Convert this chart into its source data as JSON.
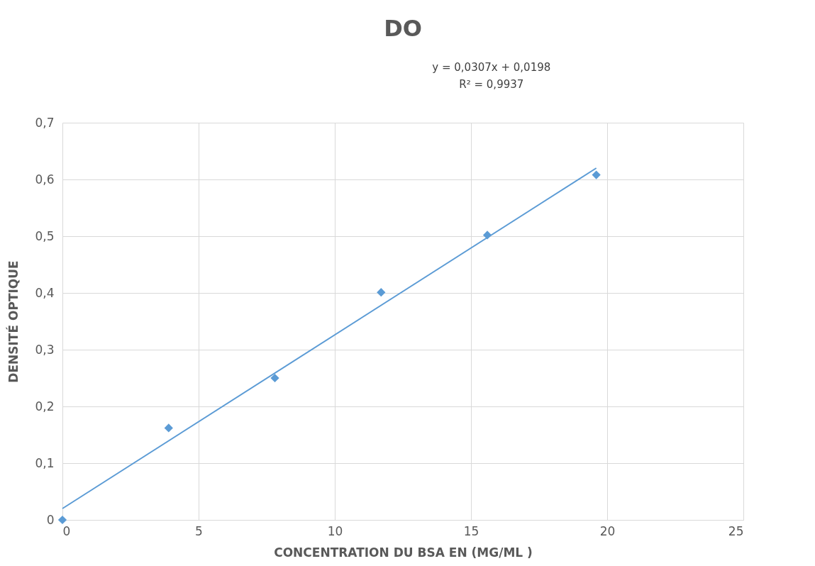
{
  "chart_data": {
    "type": "scatter",
    "title": "DO",
    "xlabel": "CONCENTRATION DU BSA EN (MG/ML  )",
    "ylabel": "DENSITÉ OPTIQUE",
    "annotations": [
      "y = 0,0307x + 0,0198",
      "R² = 0,9937"
    ],
    "series": [
      {
        "color": "#5b9bd5",
        "marker": "diamond",
        "x": [
          0,
          3.9,
          7.8,
          11.7,
          15.6,
          19.6
        ],
        "values": [
          0,
          0.162,
          0.25,
          0.401,
          0.502,
          0.608
        ]
      },
      {
        "type": "line",
        "color": "#5b9bd5",
        "line_style": "solid",
        "x": [
          0,
          19.6
        ],
        "values": [
          0.02,
          0.62
        ]
      }
    ],
    "xlim": [
      0,
      25
    ],
    "xticks": [
      0,
      5,
      10,
      15,
      20,
      25
    ],
    "ylim": [
      0,
      0.7
    ],
    "yticks": [
      0,
      {
        "value": 0.1,
        "label": "0,1"
      },
      {
        "value": 0.2,
        "label": "0,2"
      },
      {
        "value": 0.3,
        "label": "0,3"
      },
      {
        "value": 0.4,
        "label": "0,4"
      },
      {
        "value": 0.5,
        "label": "0,5"
      },
      {
        "value": 0.6,
        "label": "0,6"
      },
      {
        "value": 0.7,
        "label": "0,7"
      }
    ],
    "grid": true
  }
}
